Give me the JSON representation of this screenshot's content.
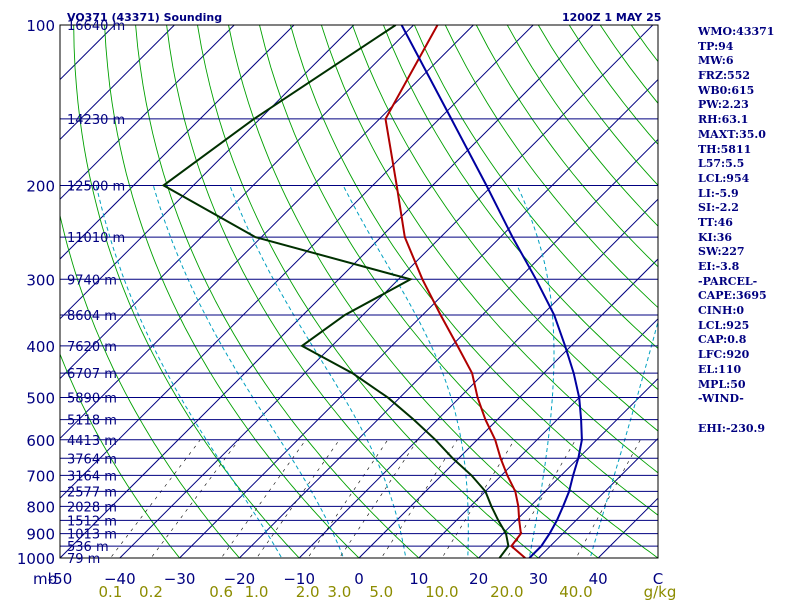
{
  "chart_data": {
    "type": "line",
    "title": "VO371 (43371) Sounding",
    "valid_time": "1200Z  1 MAY 25",
    "pressure_unit": "mb",
    "mixing_unit": "g/kg",
    "ylim": [
      1000,
      100
    ],
    "xlim": [
      -50,
      50
    ],
    "pressure_ticks": [
      100,
      200,
      300,
      400,
      500,
      600,
      700,
      800,
      900,
      1000
    ],
    "temp_ticks": [
      -50,
      -40,
      -30,
      -20,
      -10,
      0,
      10,
      20,
      30,
      40,
      50
    ],
    "temp_tick_labels": [
      "-50",
      "−40",
      "−30",
      "−20",
      "−10",
      "0",
      "10",
      "20",
      "30",
      "40",
      "C"
    ],
    "mixing_ticks": [
      {
        "value": 0.1,
        "label": "0.1"
      },
      {
        "value": 0.2,
        "label": "0.2"
      },
      {
        "value": 0.6,
        "label": "0.6"
      },
      {
        "value": 1.0,
        "label": "1.0"
      },
      {
        "value": 2.0,
        "label": "2.0"
      },
      {
        "value": 3.0,
        "label": "3.0"
      },
      {
        "value": 5.0,
        "label": "5.0"
      },
      {
        "value": 10.0,
        "label": "10.0"
      },
      {
        "value": 20.0,
        "label": "20.0"
      },
      {
        "value": 40.0,
        "label": "40.0"
      }
    ],
    "heights": [
      {
        "p": 100,
        "label": "16640 m"
      },
      {
        "p": 150,
        "label": "14230 m"
      },
      {
        "p": 200,
        "label": "12500 m"
      },
      {
        "p": 250,
        "label": "11010 m"
      },
      {
        "p": 300,
        "label": "9740 m"
      },
      {
        "p": 350,
        "label": "8604 m"
      },
      {
        "p": 400,
        "label": "7620 m"
      },
      {
        "p": 450,
        "label": "6707 m"
      },
      {
        "p": 500,
        "label": "5890 m"
      },
      {
        "p": 550,
        "label": "5118 m"
      },
      {
        "p": 600,
        "label": "4413 m"
      },
      {
        "p": 650,
        "label": "3764 m"
      },
      {
        "p": 700,
        "label": "3164 m"
      },
      {
        "p": 750,
        "label": "2577 m"
      },
      {
        "p": 800,
        "label": "2028 m"
      },
      {
        "p": 850,
        "label": "1512 m"
      },
      {
        "p": 900,
        "label": "1013 m"
      },
      {
        "p": 950,
        "label": "536 m"
      },
      {
        "p": 1000,
        "label": "79 m"
      }
    ],
    "series": [
      {
        "color": "#b00000",
        "points": [
          {
            "p": 100,
            "t": -76
          },
          {
            "p": 150,
            "t": -69
          },
          {
            "p": 200,
            "t": -56
          },
          {
            "p": 250,
            "t": -46
          },
          {
            "p": 300,
            "t": -36
          },
          {
            "p": 350,
            "t": -27
          },
          {
            "p": 400,
            "t": -19
          },
          {
            "p": 450,
            "t": -12
          },
          {
            "p": 500,
            "t": -7
          },
          {
            "p": 550,
            "t": -2
          },
          {
            "p": 600,
            "t": 3
          },
          {
            "p": 650,
            "t": 7
          },
          {
            "p": 700,
            "t": 11
          },
          {
            "p": 750,
            "t": 15
          },
          {
            "p": 800,
            "t": 18
          },
          {
            "p": 850,
            "t": 20.5
          },
          {
            "p": 900,
            "t": 23
          },
          {
            "p": 950,
            "t": 23.5
          },
          {
            "p": 1000,
            "t": 27.8
          }
        ]
      },
      {
        "color": "#003000",
        "points": [
          {
            "p": 100,
            "t": -83
          },
          {
            "p": 150,
            "t": -91
          },
          {
            "p": 200,
            "t": -95
          },
          {
            "p": 250,
            "t": -71
          },
          {
            "p": 300,
            "t": -38
          },
          {
            "p": 350,
            "t": -43
          },
          {
            "p": 400,
            "t": -45
          },
          {
            "p": 450,
            "t": -32
          },
          {
            "p": 500,
            "t": -22
          },
          {
            "p": 550,
            "t": -14
          },
          {
            "p": 600,
            "t": -7
          },
          {
            "p": 650,
            "t": -1
          },
          {
            "p": 700,
            "t": 5
          },
          {
            "p": 750,
            "t": 10
          },
          {
            "p": 800,
            "t": 13.5
          },
          {
            "p": 850,
            "t": 17
          },
          {
            "p": 900,
            "t": 20.5
          },
          {
            "p": 950,
            "t": 23
          },
          {
            "p": 1000,
            "t": 23.5
          }
        ]
      },
      {
        "color": "#0000a0",
        "points": [
          {
            "p": 100,
            "t": -82
          },
          {
            "p": 150,
            "t": -58
          },
          {
            "p": 200,
            "t": -41
          },
          {
            "p": 250,
            "t": -28
          },
          {
            "p": 300,
            "t": -17
          },
          {
            "p": 350,
            "t": -8
          },
          {
            "p": 400,
            "t": -1
          },
          {
            "p": 450,
            "t": 5
          },
          {
            "p": 500,
            "t": 10
          },
          {
            "p": 550,
            "t": 14
          },
          {
            "p": 600,
            "t": 17.5
          },
          {
            "p": 650,
            "t": 20
          },
          {
            "p": 700,
            "t": 22
          },
          {
            "p": 750,
            "t": 24
          },
          {
            "p": 800,
            "t": 25.5
          },
          {
            "p": 850,
            "t": 26.8
          },
          {
            "p": 900,
            "t": 27.8
          },
          {
            "p": 950,
            "t": 28.5
          },
          {
            "p": 1000,
            "t": 28.5
          }
        ]
      }
    ],
    "grid": true
  },
  "stats": [
    "WMO:43371",
    "TP:94",
    "MW:6",
    "FRZ:552",
    "WB0:615",
    "PW:2.23",
    "RH:63.1",
    "MAXT:35.0",
    "TH:5811",
    "L57:5.5",
    "LCL:954",
    "LI:-5.9",
    "SI:-2.2",
    "TT:46",
    "KI:36",
    "SW:227",
    "EI:-3.8",
    "-PARCEL-",
    "CAPE:3695",
    "CINH:0",
    "LCL:925",
    "CAP:0.8",
    "LFC:920",
    "EL:110",
    "MPL:50",
    "-WIND-",
    "",
    "EHI:-230.9"
  ],
  "colors": {
    "frame": "#000000",
    "isobar": "#000080",
    "isotherm": "#000080",
    "dry_adiabat": "#00a000",
    "moist_adiabat": "#00a0c0",
    "mixing_ratio": "#000000",
    "title": "#000080",
    "stats": "#000080",
    "bottom_axis": "#000080",
    "mixing_axis": "#8c8c00"
  }
}
